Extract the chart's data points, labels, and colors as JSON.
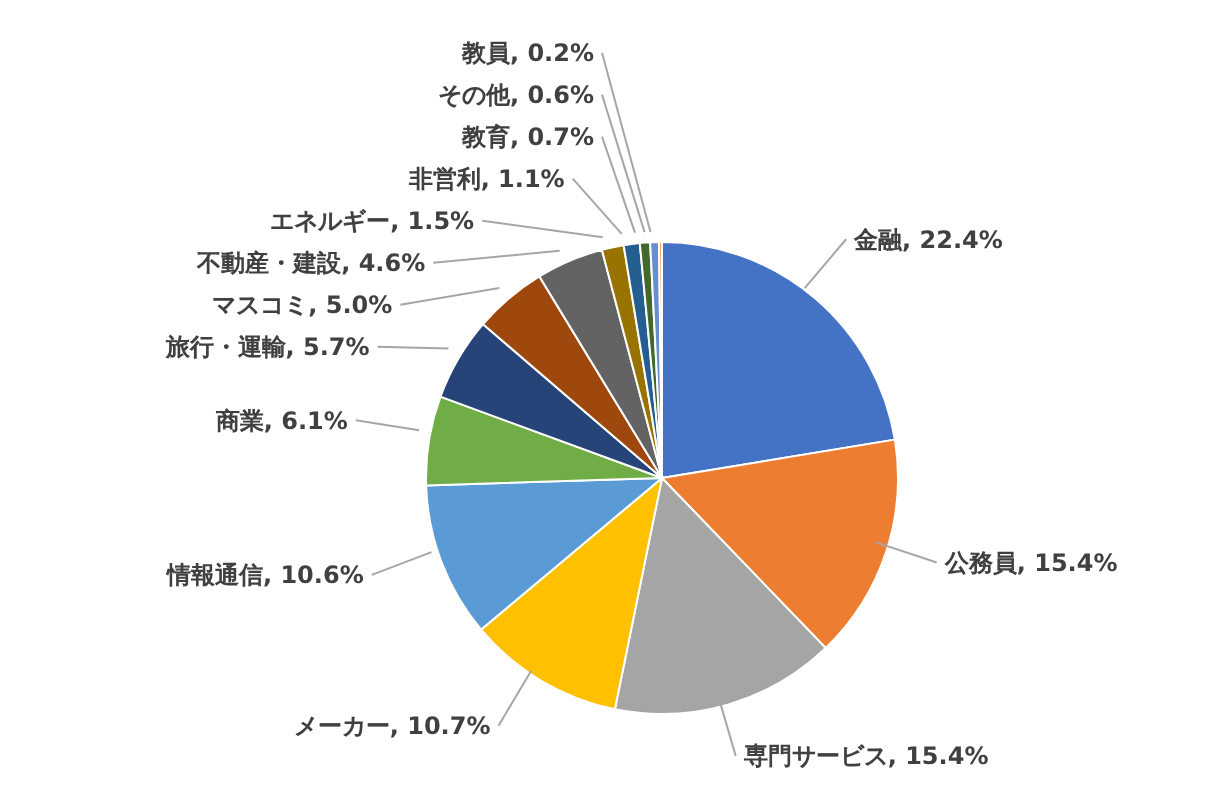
{
  "chart_data": {
    "type": "pie",
    "categories": [
      "金融",
      "公務員",
      "専門サービス",
      "メーカー",
      "情報通信",
      "商業",
      "旅行・運輸",
      "マスコミ",
      "不動産・建設",
      "エネルギー",
      "非営利",
      "教育",
      "その他",
      "教員"
    ],
    "values": [
      22.4,
      15.4,
      15.4,
      10.7,
      10.6,
      6.1,
      5.7,
      5.0,
      4.6,
      1.5,
      1.1,
      0.7,
      0.6,
      0.2
    ],
    "value_labels": [
      "22.4%",
      "15.4%",
      "15.4%",
      "10.7%",
      "10.6%",
      "6.1%",
      "5.7%",
      "5.0%",
      "4.6%",
      "1.5%",
      "1.1%",
      "0.7%",
      "0.6%",
      "0.2%"
    ],
    "colors": [
      "#4472c4",
      "#ed7d31",
      "#a5a5a5",
      "#ffc000",
      "#5b9bd5",
      "#70ad47",
      "#264478",
      "#9e480e",
      "#636363",
      "#997300",
      "#255e91",
      "#43682b",
      "#698ed0",
      "#f1975a"
    ],
    "legend": false
  }
}
